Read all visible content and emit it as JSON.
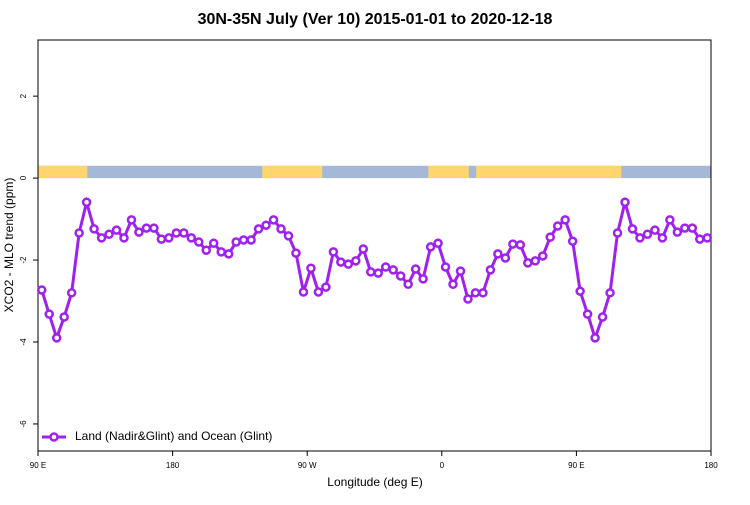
{
  "chart_data": {
    "type": "line",
    "title": "30N-35N July (Ver 10)   2015-01-01 to 2020-12-18",
    "x_label": "Longitude (deg E)",
    "y_label": "XCO2 - MLO trend (ppm)",
    "x": [
      92.5,
      97.5,
      102.5,
      107.5,
      112.5,
      117.5,
      122.5,
      127.5,
      132.5,
      137.5,
      142.5,
      147.5,
      152.5,
      157.5,
      162.5,
      167.5,
      172.5,
      177.5,
      182.5,
      187.5,
      192.5,
      197.5,
      202.5,
      207.5,
      212.5,
      217.5,
      222.5,
      227.5,
      232.5,
      237.5,
      242.5,
      247.5,
      252.5,
      257.5,
      262.5,
      267.5,
      272.5,
      277.5,
      282.5,
      287.5,
      292.5,
      297.5,
      302.5,
      307.5,
      312.5,
      317.5,
      322.5,
      327.5,
      332.5,
      337.5,
      342.5,
      347.5,
      352.5,
      357.5,
      362.5,
      367.5,
      372.5,
      377.5,
      382.5,
      387.5,
      392.5,
      397.5,
      402.5,
      407.5,
      412.5,
      417.5,
      422.5,
      427.5,
      432.5,
      437.5,
      442.5,
      447.5,
      452.5,
      457.5,
      462.5,
      467.5,
      472.5,
      477.5,
      482.5,
      487.5,
      492.5,
      497.5,
      502.5,
      507.5,
      512.5,
      517.5,
      522.5,
      527.5,
      532.5,
      537.5
    ],
    "series": [
      {
        "name": "Land (Nadir&Glint) and Ocean (Glint)",
        "color": "#a020f0",
        "values": [
          -2.73,
          -3.32,
          -3.9,
          -3.39,
          -2.8,
          -1.34,
          -0.59,
          -1.24,
          -1.46,
          -1.37,
          -1.27,
          -1.46,
          -1.02,
          -1.32,
          -1.22,
          -1.22,
          -1.49,
          -1.46,
          -1.34,
          -1.34,
          -1.46,
          -1.56,
          -1.76,
          -1.59,
          -1.8,
          -1.85,
          -1.56,
          -1.51,
          -1.51,
          -1.24,
          -1.15,
          -1.02,
          -1.24,
          -1.41,
          -1.83,
          -2.78,
          -2.2,
          -2.78,
          -2.66,
          -1.8,
          -2.05,
          -2.1,
          -2.02,
          -1.73,
          -2.29,
          -2.32,
          -2.17,
          -2.24,
          -2.39,
          -2.59,
          -2.22,
          -2.46,
          -1.68,
          -1.59,
          -2.17,
          -2.59,
          -2.27,
          -2.95,
          -2.8,
          -2.8,
          -2.24,
          -1.85,
          -1.95,
          -1.61,
          -1.63,
          -2.07,
          -2.02,
          -1.9,
          -1.44,
          -1.17,
          -1.02,
          -1.54,
          -2.76,
          -3.32,
          -3.9,
          -3.39,
          -2.8,
          -1.34,
          -0.59,
          -1.24,
          -1.46,
          -1.37,
          -1.27,
          -1.46,
          -1.02,
          -1.32,
          -1.22,
          -1.22,
          -1.49,
          -1.46
        ]
      }
    ],
    "land_mask": {
      "land_color": "#ffd66e",
      "ocean_color": "#a5b8d8",
      "y_range": [
        0,
        0.3
      ],
      "land_ranges": [
        [
          90,
          123
        ],
        [
          240,
          280
        ],
        [
          351,
          378
        ],
        [
          383,
          480
        ]
      ]
    },
    "xlim": [
      90,
      540
    ],
    "xticks": [
      {
        "value": 90,
        "label": "90 E"
      },
      180,
      {
        "value": 270,
        "label": "90 W"
      },
      {
        "value": 360,
        "label": "0"
      },
      {
        "value": 450,
        "label": "90 E"
      },
      {
        "value": 540,
        "label": "180"
      }
    ],
    "ylim": [
      -6.66,
      3.37
    ],
    "yticks": [
      -6,
      -4,
      -2,
      0,
      2
    ],
    "legend": "bottom-left"
  }
}
